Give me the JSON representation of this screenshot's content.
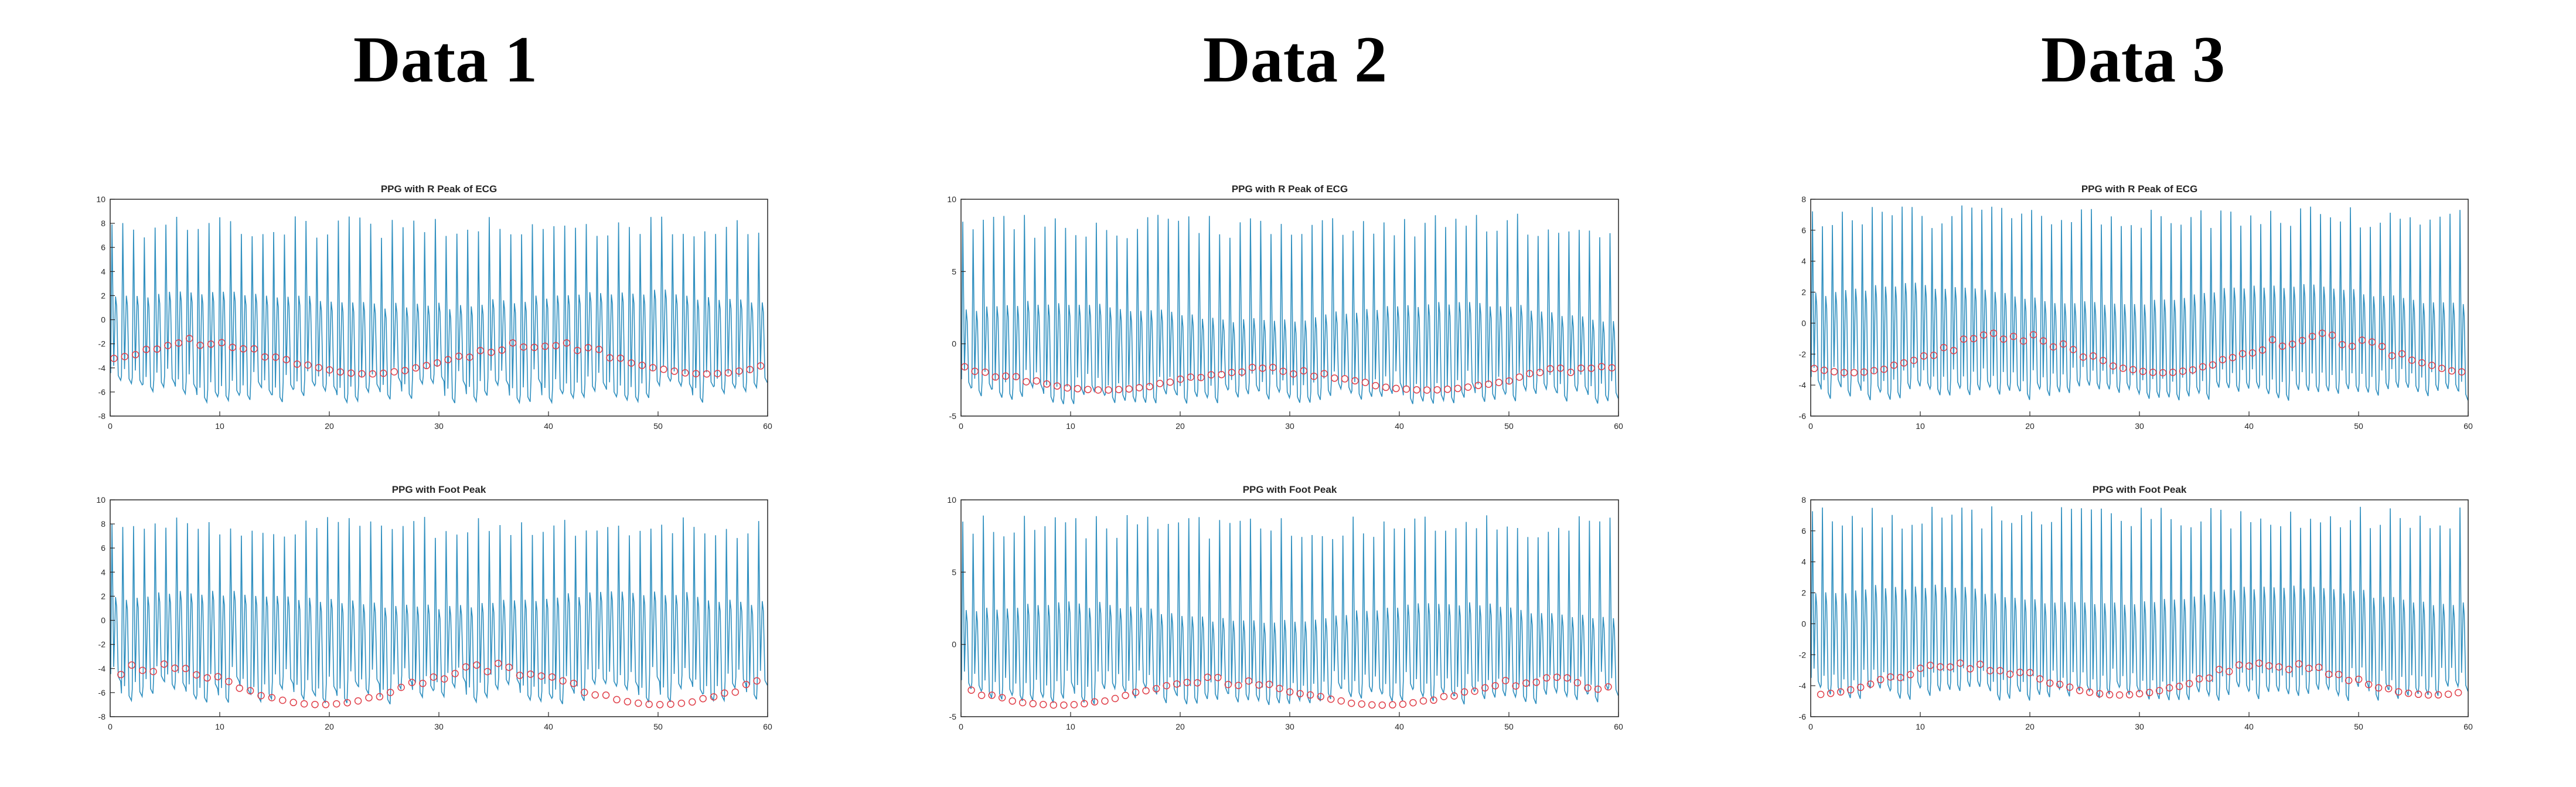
{
  "columns": [
    {
      "title": "Data 1"
    },
    {
      "title": "Data 2"
    },
    {
      "title": "Data 3"
    }
  ],
  "colors": {
    "signal": "#2f8fbf",
    "marker": "#e0404a",
    "axis": "#262626"
  },
  "chart_data": [
    {
      "type": "line",
      "column": "Data 1",
      "title": "PPG with R Peak of ECG",
      "xlim": [
        0,
        60
      ],
      "ylim": [
        -8,
        10
      ],
      "xticks": [
        0,
        10,
        20,
        30,
        40,
        50,
        60
      ],
      "yticks": [
        -8,
        -6,
        -4,
        -2,
        0,
        2,
        4,
        6,
        8,
        10
      ],
      "marker_level": "r-peak",
      "signal_high_range": [
        6,
        8.6
      ],
      "signal_low_range": [
        -7,
        -5
      ],
      "marker_range": [
        -4.5,
        -1.5
      ],
      "beats": 61
    },
    {
      "type": "line",
      "column": "Data 1",
      "title": "PPG with Foot Peak",
      "xlim": [
        0,
        60
      ],
      "ylim": [
        -8,
        10
      ],
      "xticks": [
        0,
        10,
        20,
        30,
        40,
        50,
        60
      ],
      "yticks": [
        -8,
        -6,
        -4,
        -2,
        0,
        2,
        4,
        6,
        8,
        10
      ],
      "marker_level": "foot",
      "signal_high_range": [
        6,
        8.6
      ],
      "signal_low_range": [
        -7,
        -5
      ],
      "marker_range": [
        -7,
        -3.5
      ],
      "beats": 61
    },
    {
      "type": "line",
      "column": "Data 2",
      "title": "PPG with R Peak of ECG",
      "xlim": [
        0,
        60
      ],
      "ylim": [
        -5,
        10
      ],
      "xticks": [
        0,
        10,
        20,
        30,
        40,
        50,
        60
      ],
      "yticks": [
        -5,
        0,
        5,
        10
      ],
      "marker_level": "r-peak",
      "signal_high_range": [
        6.5,
        9
      ],
      "signal_low_range": [
        -4.2,
        -3
      ],
      "marker_range": [
        -3.2,
        -1.5
      ],
      "beats": 64
    },
    {
      "type": "line",
      "column": "Data 2",
      "title": "PPG with Foot Peak",
      "xlim": [
        0,
        60
      ],
      "ylim": [
        -5,
        10
      ],
      "xticks": [
        0,
        10,
        20,
        30,
        40,
        50,
        60
      ],
      "yticks": [
        -5,
        0,
        5,
        10
      ],
      "marker_level": "foot",
      "signal_high_range": [
        6.5,
        9
      ],
      "signal_low_range": [
        -4.2,
        -3
      ],
      "marker_range": [
        -4.2,
        -2.2
      ],
      "beats": 64
    },
    {
      "type": "line",
      "column": "Data 3",
      "title": "PPG with R Peak of ECG",
      "xlim": [
        0,
        60
      ],
      "ylim": [
        -6,
        8
      ],
      "xticks": [
        0,
        10,
        20,
        30,
        40,
        50,
        60
      ],
      "yticks": [
        -6,
        -4,
        -2,
        0,
        2,
        4,
        6,
        8
      ],
      "marker_level": "r-peak",
      "signal_high_range": [
        5.5,
        7.6
      ],
      "signal_low_range": [
        -5,
        -4
      ],
      "marker_range": [
        -3.2,
        -0.5
      ],
      "beats": 66
    },
    {
      "type": "line",
      "column": "Data 3",
      "title": "PPG with Foot Peak",
      "xlim": [
        0,
        60
      ],
      "ylim": [
        -6,
        8
      ],
      "xticks": [
        0,
        10,
        20,
        30,
        40,
        50,
        60
      ],
      "yticks": [
        -6,
        -4,
        -2,
        0,
        2,
        4,
        6,
        8
      ],
      "marker_level": "foot",
      "signal_high_range": [
        5.5,
        7.6
      ],
      "signal_low_range": [
        -5,
        -4
      ],
      "marker_range": [
        -4.6,
        -2.2
      ],
      "beats": 66
    }
  ]
}
